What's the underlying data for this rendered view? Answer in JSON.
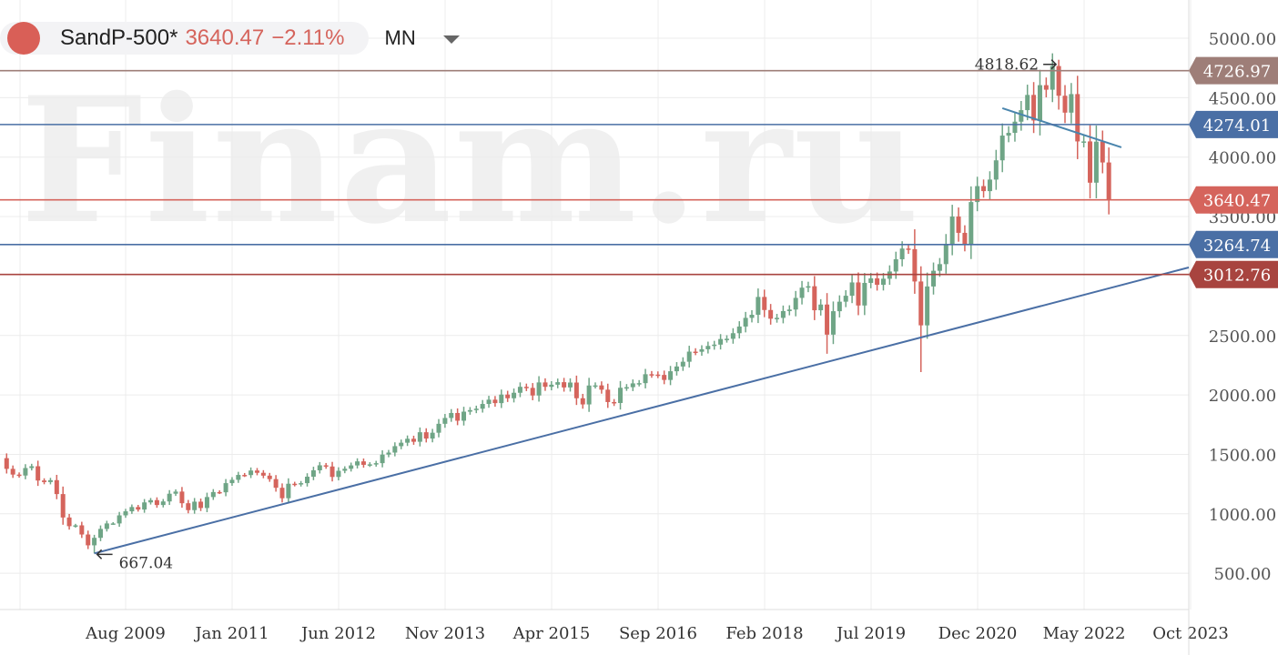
{
  "header": {
    "symbol": "SandP-500*",
    "price": "3640.47",
    "change": "−2.11%",
    "timeframe": "MN",
    "dropdown_icon": "caret-down-icon"
  },
  "watermark": "Finam.ru",
  "colors": {
    "up": "#6fa586",
    "down": "#d5645c",
    "grid": "#ececec"
  },
  "chart_data": {
    "type": "candlestick",
    "title": "SandP-500* MN",
    "start_month": "2007-12",
    "closes": [
      1468,
      1378,
      1330,
      1322,
      1385,
      1400,
      1280,
      1267,
      1283,
      1166,
      969,
      896,
      903,
      826,
      735,
      798,
      873,
      919,
      919,
      987,
      1021,
      1057,
      1036,
      1096,
      1115,
      1074,
      1104,
      1169,
      1187,
      1089,
      1031,
      1102,
      1049,
      1141,
      1183,
      1181,
      1258,
      1286,
      1327,
      1326,
      1364,
      1345,
      1321,
      1292,
      1219,
      1131,
      1253,
      1247,
      1258,
      1312,
      1366,
      1408,
      1398,
      1310,
      1362,
      1379,
      1407,
      1441,
      1412,
      1416,
      1426,
      1498,
      1515,
      1569,
      1598,
      1631,
      1606,
      1686,
      1633,
      1682,
      1757,
      1806,
      1848,
      1783,
      1859,
      1872,
      1884,
      1924,
      1960,
      1931,
      2003,
      1972,
      2018,
      2068,
      2059,
      1995,
      2105,
      2068,
      2086,
      2107,
      2063,
      2104,
      1972,
      1920,
      2079,
      2080,
      2044,
      1940,
      1932,
      2060,
      2065,
      2097,
      2099,
      2174,
      2171,
      2168,
      2126,
      2199,
      2239,
      2279,
      2364,
      2363,
      2384,
      2412,
      2423,
      2470,
      2472,
      2519,
      2575,
      2648,
      2674,
      2824,
      2714,
      2641,
      2648,
      2705,
      2718,
      2816,
      2902,
      2914,
      2712,
      2760,
      2507,
      2704,
      2784,
      2834,
      2946,
      2752,
      2942,
      2980,
      2926,
      2977,
      3038,
      3141,
      3231,
      3226,
      2954,
      2585,
      2912,
      3044,
      3100,
      3271,
      3500,
      3363,
      3270,
      3622,
      3756,
      3714,
      3811,
      3973,
      4181,
      4204,
      4298,
      4395,
      4523,
      4308,
      4605,
      4567,
      4766,
      4516,
      4374,
      4530,
      4132,
      4132,
      3785,
      4130,
      3955,
      3640.47
    ],
    "y_ticks": [
      "5000.00",
      "4500.00",
      "4000.00",
      "3500.00",
      "2500.00",
      "2000.00",
      "1500.00",
      "1000.00",
      "500.00"
    ],
    "x_ticks": [
      "Aug 2009",
      "Jan 2011",
      "Jun 2012",
      "Nov 2013",
      "Apr 2015",
      "Sep 2016",
      "Feb 2018",
      "Jul 2019",
      "Dec 2020",
      "May 2022",
      "Oct 2023"
    ],
    "ylim": [
      180,
      5280
    ],
    "levels": [
      {
        "value": 4726.97,
        "label": "4726.97",
        "color": "#9e7e78"
      },
      {
        "value": 4274.01,
        "label": "4274.01",
        "color": "#4a6fa5"
      },
      {
        "value": 3640.47,
        "label": "3640.47",
        "color": "#d5645c"
      },
      {
        "value": 3264.74,
        "label": "3264.74",
        "color": "#4a6fa5"
      },
      {
        "value": 3012.76,
        "label": "3012.76",
        "color": "#a8443f"
      }
    ],
    "trendlines": [
      {
        "from": [
          "2009-03",
          667
        ],
        "to": [
          "2023-10",
          3072
        ],
        "color": "#4a6fa5"
      },
      {
        "from": [
          "2021-04",
          4411
        ],
        "to": [
          "2022-11",
          4082
        ],
        "color": "#4a85ad"
      }
    ],
    "annotations": [
      {
        "text": "4818.62",
        "month": "2022-01",
        "value": 4818.62,
        "arrow": "right"
      },
      {
        "text": "667.04",
        "month": "2009-03",
        "value": 667.04,
        "arrow": "left"
      }
    ],
    "extremes": {
      "low_2009": 667.04,
      "high_2022": 4818.62
    }
  }
}
